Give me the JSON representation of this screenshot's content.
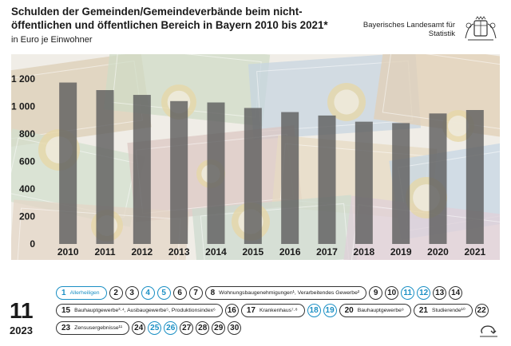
{
  "header": {
    "title": "Schulden der Gemeinden/Gemeindeverbände beim nicht-öffentlichen und öffentlichen Bereich in Bayern 2010 bis 2021*",
    "subtitle": "in Euro je Einwohner",
    "org_line1": "Bayerisches Landesamt für",
    "org_line2": "Statistik",
    "crest_icon": "bavaria-crest-icon"
  },
  "chart_data": {
    "type": "bar",
    "title": "Schulden der Gemeinden/Gemeindeverbände beim nicht-öffentlichen und öffentlichen Bereich in Bayern 2010 bis 2021*",
    "ylabel": "in Euro je Einwohner",
    "categories": [
      "2010",
      "2011",
      "2012",
      "2013",
      "2014",
      "2015",
      "2016",
      "2017",
      "2018",
      "2019",
      "2020",
      "2021"
    ],
    "values": [
      1175,
      1120,
      1085,
      1040,
      1030,
      990,
      960,
      935,
      890,
      880,
      950,
      975
    ],
    "ylim": [
      0,
      1300
    ],
    "yticks": [
      0,
      200,
      400,
      600,
      800,
      1000,
      1200
    ],
    "ytick_labels": [
      "0",
      "200",
      "400",
      "600",
      "800",
      "1 000",
      "1 200"
    ],
    "grid": false,
    "bar_color": "#5f5f5f",
    "background": "euro banknotes and coins photo"
  },
  "calendar": {
    "month": "11",
    "year": "2023",
    "accent_color": "#1a8fc4",
    "rows": [
      [
        {
          "num": "1",
          "label": "Allerheiligen",
          "blue": true
        },
        {
          "num": "2"
        },
        {
          "num": "3"
        },
        {
          "num": "4",
          "blue": true
        },
        {
          "num": "5",
          "blue": true
        },
        {
          "num": "6"
        },
        {
          "num": "7"
        },
        {
          "num": "8",
          "label": "Wohnungsbaugenehmigungen¹, Verarbeitendes Gewerbe²"
        },
        {
          "num": "9"
        },
        {
          "num": "10"
        },
        {
          "num": "11",
          "blue": true
        },
        {
          "num": "12",
          "blue": true
        },
        {
          "num": "13"
        },
        {
          "num": "14"
        }
      ],
      [
        {
          "num": "15",
          "label": "Bauhauptgewerbe³·⁴, Ausbaugewerbe⁵, Produktionsindex⁶"
        },
        {
          "num": "16"
        },
        {
          "num": "17",
          "label": "Krankenhaus⁷·⁸"
        },
        {
          "num": "18",
          "blue": true
        },
        {
          "num": "19",
          "blue": true
        },
        {
          "num": "20",
          "label": "Bauhauptgewerbe⁹"
        },
        {
          "num": "21",
          "label": "Studierende¹⁰"
        },
        {
          "num": "22"
        }
      ],
      [
        {
          "num": "23",
          "label": "Zensusergebnisse¹¹"
        },
        {
          "num": "24"
        },
        {
          "num": "25",
          "blue": true
        },
        {
          "num": "26",
          "blue": true
        },
        {
          "num": "27"
        },
        {
          "num": "28"
        },
        {
          "num": "29"
        },
        {
          "num": "30"
        }
      ]
    ],
    "corner_icon": "flip-page-icon"
  }
}
